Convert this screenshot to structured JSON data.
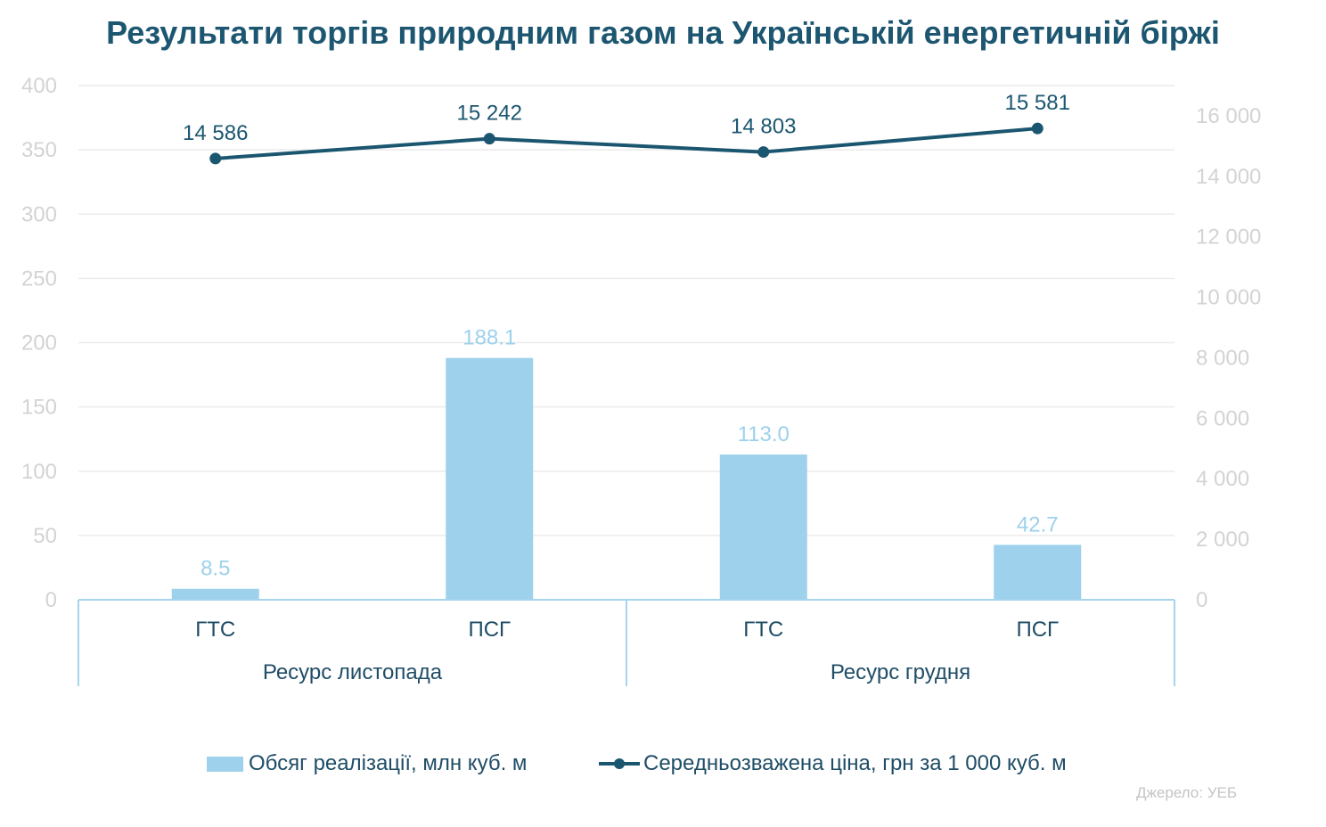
{
  "colors": {
    "title": "#1c5670",
    "bar": "#9dd1ec",
    "bar_label": "#9dd1ec",
    "line": "#1b5670",
    "category_text": "#1f4d66",
    "axis_text": "#d3d3d3",
    "grid": "#ebebeb",
    "axis_line": "#a6d4ec",
    "source_text": "#c4c4c4"
  },
  "chart_data": {
    "type": "bar",
    "title": "Результати торгів природним газом на Українській енергетичній біржі",
    "categories": [
      "ГТС",
      "ПСГ",
      "ГТС",
      "ПСГ"
    ],
    "groups": [
      {
        "label": "Ресурс листопада",
        "category_indices": [
          0,
          1
        ]
      },
      {
        "label": "Ресурс грудня",
        "category_indices": [
          2,
          3
        ]
      }
    ],
    "series": [
      {
        "name": "Обсяг реалізації, млн куб. м",
        "type": "bar",
        "axis": "left",
        "values": [
          8.5,
          188.1,
          113.0,
          42.7
        ],
        "labels": [
          "8.5",
          "188.1",
          "113.0",
          "42.7"
        ]
      },
      {
        "name": "Середньозважена ціна, грн за 1 000 куб. м",
        "type": "line",
        "axis": "right",
        "values": [
          14586,
          15242,
          14803,
          15581
        ],
        "labels": [
          "14 586",
          "15 242",
          "14 803",
          "15 581"
        ]
      }
    ],
    "y_left": {
      "ylim": [
        0,
        400
      ],
      "ticks": [
        {
          "value": 0,
          "label": "0"
        },
        {
          "value": 50,
          "label": "50"
        },
        {
          "value": 100,
          "label": "100"
        },
        {
          "value": 150,
          "label": "150"
        },
        {
          "value": 200,
          "label": "200"
        },
        {
          "value": 250,
          "label": "250"
        },
        {
          "value": 300,
          "label": "300"
        },
        {
          "value": 350,
          "label": "350"
        },
        {
          "value": 400,
          "label": "400"
        }
      ]
    },
    "y_right": {
      "ylim": [
        0,
        17000
      ],
      "ticks": [
        {
          "value": 0,
          "label": "0"
        },
        {
          "value": 2000,
          "label": "2 000"
        },
        {
          "value": 4000,
          "label": "4 000"
        },
        {
          "value": 6000,
          "label": "6 000"
        },
        {
          "value": 8000,
          "label": "8 000"
        },
        {
          "value": 10000,
          "label": "10 000"
        },
        {
          "value": 12000,
          "label": "12 000"
        },
        {
          "value": 14000,
          "label": "14 000"
        },
        {
          "value": 16000,
          "label": "16 000"
        }
      ]
    },
    "grid": true,
    "legend": "bottom",
    "source": "Джерело: УЕБ"
  }
}
